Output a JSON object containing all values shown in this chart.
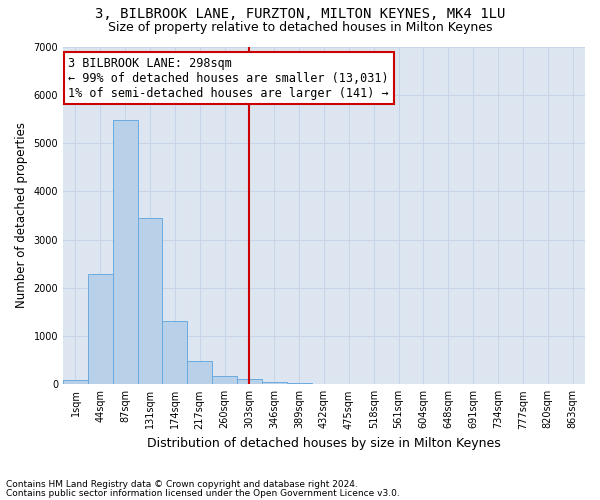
{
  "title": "3, BILBROOK LANE, FURZTON, MILTON KEYNES, MK4 1LU",
  "subtitle": "Size of property relative to detached houses in Milton Keynes",
  "xlabel": "Distribution of detached houses by size in Milton Keynes",
  "ylabel": "Number of detached properties",
  "footnote1": "Contains HM Land Registry data © Crown copyright and database right 2024.",
  "footnote2": "Contains public sector information licensed under the Open Government Licence v3.0.",
  "bar_labels": [
    "1sqm",
    "44sqm",
    "87sqm",
    "131sqm",
    "174sqm",
    "217sqm",
    "260sqm",
    "303sqm",
    "346sqm",
    "389sqm",
    "432sqm",
    "475sqm",
    "518sqm",
    "561sqm",
    "604sqm",
    "648sqm",
    "691sqm",
    "734sqm",
    "777sqm",
    "820sqm",
    "863sqm"
  ],
  "bar_values": [
    80,
    2280,
    5480,
    3440,
    1320,
    480,
    170,
    100,
    55,
    30,
    10,
    5,
    3,
    2,
    1,
    1,
    0,
    0,
    0,
    0,
    0
  ],
  "bar_color": "#b8d0e8",
  "bar_edge_color": "#6aabe0",
  "grid_color": "#c8d4e8",
  "bg_color": "#dde6f0",
  "vline_x_index": 7,
  "vline_color": "#cc0000",
  "annotation_line1": "3 BILBROOK LANE: 298sqm",
  "annotation_line2": "← 99% of detached houses are smaller (13,031)",
  "annotation_line3": "1% of semi-detached houses are larger (141) →",
  "annotation_box_color": "#cc0000",
  "ylim": [
    0,
    7000
  ],
  "yticks": [
    0,
    1000,
    2000,
    3000,
    4000,
    5000,
    6000,
    7000
  ],
  "title_fontsize": 10,
  "subtitle_fontsize": 9,
  "xlabel_fontsize": 9,
  "ylabel_fontsize": 8.5,
  "tick_fontsize": 7,
  "annot_fontsize": 8.5,
  "footnote_fontsize": 6.5
}
